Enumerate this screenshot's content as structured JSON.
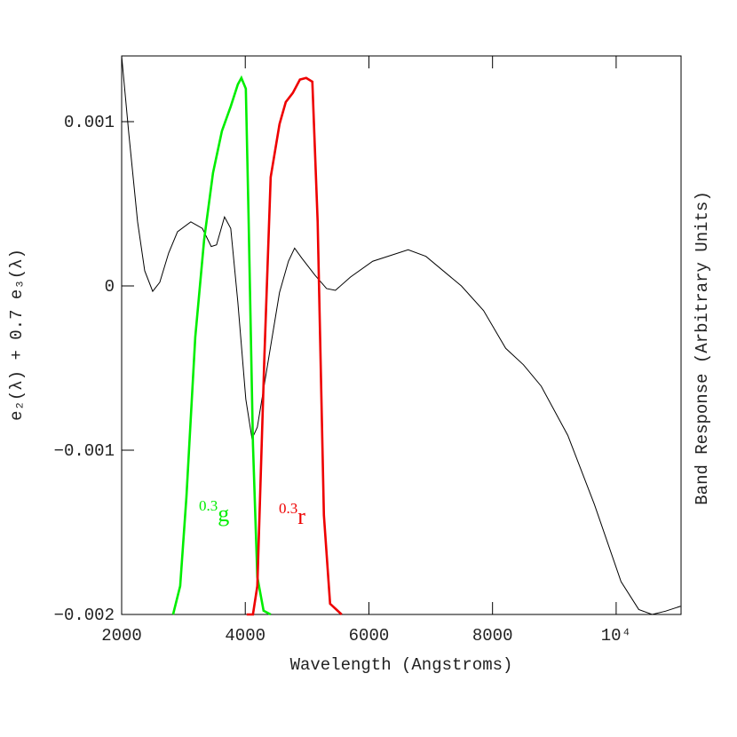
{
  "chart_data": {
    "type": "line",
    "xlabel": "Wavelength (Angstroms)",
    "ylabel": "e₂(λ) + 0.7 e₃(λ)",
    "y2label": "Band Response (Arbitrary Units)",
    "xlim": [
      2000,
      11050
    ],
    "ylim": [
      -0.002,
      0.0014
    ],
    "y2lim": [
      0,
      1.041
    ],
    "xticks": [
      2000,
      4000,
      6000,
      8000,
      {
        "value": 10000,
        "label": "10⁴"
      }
    ],
    "yticks": [
      {
        "value": -0.002,
        "label": "−0.002"
      },
      {
        "value": -0.001,
        "label": "−0.001"
      },
      0,
      0.001
    ],
    "series": [
      {
        "color": "#000000",
        "x": [
          2000,
          2115,
          2258,
          2373,
          2502,
          2617,
          2760,
          2904,
          3119,
          3306,
          3449,
          3535,
          3664,
          3765,
          3880,
          4009,
          4109,
          4195,
          4339,
          4554,
          4698,
          4798,
          4913,
          5128,
          5315,
          5458,
          5702,
          6061,
          6635,
          6922,
          7496,
          7855,
          8213,
          8500,
          8787,
          9218,
          9648,
          10079,
          10366,
          10582,
          10797,
          11041
        ],
        "values": [
          0.0014,
          0.00093,
          0.00039,
          9.2e-05,
          -3.3e-05,
          2.2e-05,
          0.0002,
          0.00033,
          0.00039,
          0.00035,
          0.00024,
          0.00025,
          0.00042,
          0.00035,
          -0.0001,
          -0.00069,
          -0.00093,
          -0.00086,
          -0.00053,
          -4e-05,
          0.00015,
          0.00023,
          0.00017,
          6.5e-05,
          -1.6e-05,
          -2.7e-05,
          5.4e-05,
          0.00015,
          0.00022,
          0.00018,
          0,
          -0.00015,
          -0.00038,
          -0.00048,
          -0.00061,
          -0.00091,
          -0.00133,
          -0.0018,
          -0.00197,
          -0.002,
          -0.00198,
          -0.00195
        ]
      },
      {
        "color": "#00ee00",
        "axis": "y2",
        "x": [
          2832,
          2947,
          3048,
          3191,
          3335,
          3478,
          3622,
          3765,
          3880,
          3937,
          4009,
          4052,
          4124,
          4195,
          4296,
          4411
        ],
        "values": [
          0,
          0.053,
          0.219,
          0.517,
          0.699,
          0.823,
          0.901,
          0.947,
          0.988,
          1,
          0.98,
          0.748,
          0.318,
          0.07,
          0.007,
          0
        ]
      },
      {
        "color": "#ee0000",
        "axis": "y2",
        "x": [
          4023,
          4124,
          4195,
          4310,
          4411,
          4554,
          4655,
          4769,
          4884,
          4985,
          5085,
          5171,
          5272,
          5372,
          5559
        ],
        "values": [
          0,
          0,
          0.053,
          0.483,
          0.815,
          0.914,
          0.955,
          0.972,
          0.997,
          1,
          0.993,
          0.732,
          0.185,
          0.02,
          0
        ]
      }
    ],
    "annotations": [
      {
        "sup": "0.3",
        "text": "g"
      },
      {
        "sup": "0.3",
        "text": "r"
      }
    ]
  }
}
